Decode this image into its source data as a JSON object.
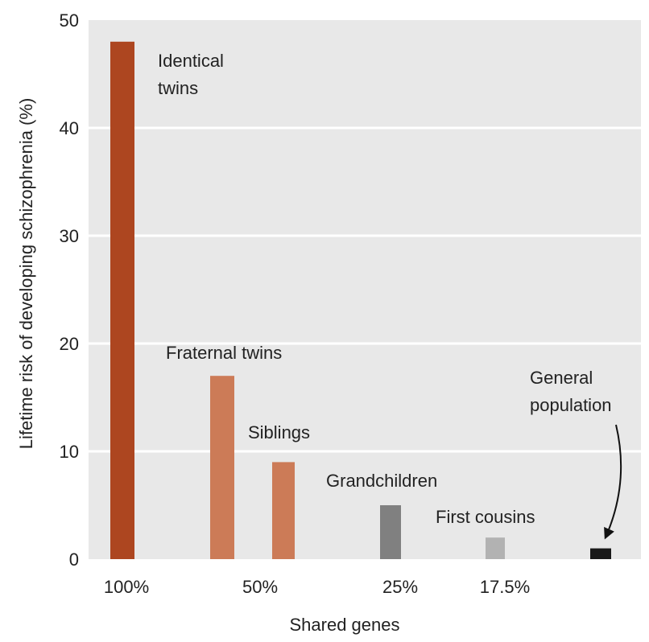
{
  "chart_data": {
    "type": "bar",
    "xlabel": "Shared genes",
    "ylabel": "Lifetime risk of developing schizophrenia (%)",
    "ylim": [
      0,
      50
    ],
    "yticks": [
      "0",
      "10",
      "20",
      "30",
      "40",
      "50"
    ],
    "grid": true,
    "background": "#e8e8e8",
    "bars": [
      {
        "label": "Identical twins",
        "value": 48,
        "color": "#ad4620"
      },
      {
        "label": "Fraternal twins",
        "value": 17,
        "color": "#cc7b57"
      },
      {
        "label": "Siblings",
        "value": 9,
        "color": "#cc7b57"
      },
      {
        "label": "Grandchildren",
        "value": 5,
        "color": "#808080"
      },
      {
        "label": "First cousins",
        "value": 2,
        "color": "#b2b2b2"
      },
      {
        "label": "General population",
        "value": 1,
        "color": "#1a1a1a"
      }
    ],
    "x_tick_labels": [
      "100%",
      "50%",
      "25%",
      "17.5%"
    ]
  }
}
